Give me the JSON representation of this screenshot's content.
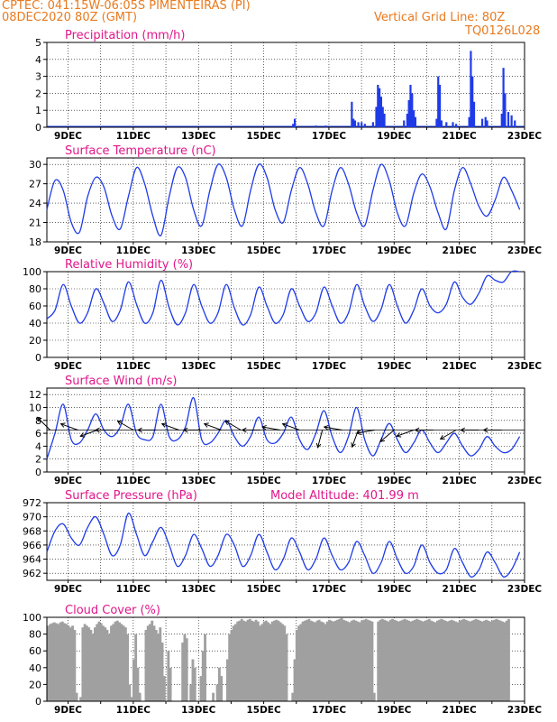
{
  "header": {
    "left_line1": "CPTEC:   041:15W-06:05S   PIMENTEIRAS (PI)",
    "left_line2": "08DEC2020 80Z (GMT)",
    "right_line1": "Vertical Grid Line: 80Z",
    "right_line2": "TQ0126L028"
  },
  "colors": {
    "header": "#e87a1e",
    "title": "#e0178a",
    "series": "#1f3be8",
    "cloud": "#a0a0a0",
    "wind_arrow": "#000000"
  },
  "x_ticks": [
    "9DEC",
    "11DEC",
    "13DEC",
    "15DEC",
    "17DEC",
    "19DEC",
    "21DEC",
    "23DEC"
  ],
  "chart_data": [
    {
      "type": "bar",
      "name": "precipitation",
      "title": "Precipitation (mm/h)",
      "ylim": [
        0,
        5
      ],
      "yticks": [
        0,
        1,
        2,
        3,
        4,
        5
      ],
      "x_days": [
        8.35,
        23.0
      ],
      "values_per_hour": "hourly series, see spikes",
      "spikes": [
        [
          15.9,
          0.2
        ],
        [
          15.95,
          0.5
        ],
        [
          16.6,
          0.1
        ],
        [
          16.9,
          0.1
        ],
        [
          17.7,
          1.5
        ],
        [
          17.75,
          0.5
        ],
        [
          17.8,
          0.4
        ],
        [
          17.9,
          0.3
        ],
        [
          18.0,
          0.3
        ],
        [
          18.1,
          0.2
        ],
        [
          18.35,
          0.3
        ],
        [
          18.45,
          1.2
        ],
        [
          18.5,
          2.5
        ],
        [
          18.55,
          2.3
        ],
        [
          18.6,
          1.8
        ],
        [
          18.65,
          1.2
        ],
        [
          18.7,
          0.8
        ],
        [
          19.3,
          0.4
        ],
        [
          19.4,
          0.8
        ],
        [
          19.45,
          1.6
        ],
        [
          19.5,
          2.5
        ],
        [
          19.55,
          2.0
        ],
        [
          19.6,
          1.0
        ],
        [
          19.65,
          0.6
        ],
        [
          20.3,
          0.5
        ],
        [
          20.35,
          3.0
        ],
        [
          20.4,
          2.5
        ],
        [
          20.45,
          0.4
        ],
        [
          20.6,
          0.3
        ],
        [
          20.8,
          0.3
        ],
        [
          20.9,
          0.2
        ],
        [
          21.3,
          0.6
        ],
        [
          21.35,
          4.5
        ],
        [
          21.4,
          3.0
        ],
        [
          21.45,
          1.5
        ],
        [
          21.7,
          0.5
        ],
        [
          21.8,
          0.6
        ],
        [
          21.85,
          0.4
        ],
        [
          22.3,
          0.8
        ],
        [
          22.35,
          3.5
        ],
        [
          22.4,
          2.0
        ],
        [
          22.5,
          0.9
        ],
        [
          22.6,
          0.7
        ],
        [
          22.7,
          0.4
        ]
      ]
    },
    {
      "type": "line",
      "name": "surface_temperature",
      "title": "Surface Temperature (nC)",
      "ylim": [
        18,
        31
      ],
      "yticks": [
        18,
        21,
        24,
        27,
        30
      ],
      "x_start_day": 8.35,
      "step_days": 0.25,
      "y": [
        23,
        27.5,
        26,
        21,
        19.5,
        25,
        28,
        26.5,
        22,
        20,
        25,
        29.5,
        27,
        22,
        19,
        25,
        29.5,
        28,
        23,
        20.5,
        26,
        30,
        28,
        23,
        20.5,
        26,
        30,
        28,
        23,
        21,
        26,
        29.5,
        27,
        22.5,
        20.5,
        26,
        29.5,
        27,
        22.5,
        20.5,
        26,
        30,
        27.5,
        22.5,
        20.5,
        25.5,
        28.5,
        26.5,
        22.5,
        20,
        26,
        29.5,
        27,
        23.5,
        22,
        24.5,
        28,
        26,
        23,
        21.5,
        24.5,
        26.5,
        24.5,
        22.5,
        21.5,
        23,
        24.5,
        23,
        21.5,
        20.5,
        22.5,
        23.5,
        22,
        20.5,
        20,
        22,
        23.5,
        22,
        20.5,
        20,
        22.5,
        25,
        24.5,
        22.5,
        21.5,
        23,
        26.5,
        25.5,
        23
      ]
    },
    {
      "type": "line",
      "name": "relative_humidity",
      "title": "Relative Humidity (%)",
      "ylim": [
        0,
        100
      ],
      "yticks": [
        0,
        20,
        40,
        60,
        80,
        100
      ],
      "x_start_day": 8.35,
      "step_days": 0.25,
      "y": [
        45,
        55,
        85,
        60,
        40,
        52,
        80,
        63,
        42,
        55,
        88,
        62,
        40,
        52,
        90,
        58,
        38,
        52,
        85,
        60,
        40,
        52,
        85,
        58,
        38,
        50,
        82,
        60,
        40,
        50,
        80,
        60,
        42,
        52,
        82,
        60,
        40,
        52,
        85,
        60,
        42,
        56,
        85,
        60,
        40,
        55,
        80,
        60,
        52,
        62,
        88,
        70,
        62,
        75,
        95,
        90,
        88,
        100,
        100,
        78,
        95,
        100,
        85,
        78,
        100,
        95,
        80,
        82,
        98,
        100,
        70,
        90,
        100,
        98,
        68,
        90,
        100,
        100,
        75,
        92,
        100,
        98,
        72,
        88,
        100,
        96,
        70,
        92,
        100,
        95
      ]
    },
    {
      "type": "line",
      "name": "surface_wind",
      "title": "Surface Wind (m/s)",
      "ylim": [
        0,
        13
      ],
      "yticks": [
        0,
        2,
        4,
        6,
        8,
        10,
        12
      ],
      "x_start_day": 8.35,
      "step_days": 0.25,
      "y": [
        2,
        6,
        10.5,
        5,
        4.5,
        6.5,
        9,
        6.5,
        5.5,
        7,
        10.5,
        6,
        5,
        5.5,
        10.5,
        5.5,
        5,
        7,
        11.5,
        5,
        4.5,
        6,
        8,
        5.5,
        4,
        5.5,
        8.5,
        5,
        4.5,
        6,
        8.5,
        5,
        3.5,
        6,
        9.5,
        5.5,
        3,
        5.5,
        10,
        5,
        2.5,
        5,
        7.5,
        5,
        3,
        4.5,
        6.5,
        4.5,
        3,
        4.5,
        6,
        4,
        2.5,
        3.5,
        5.5,
        4,
        3,
        3.5,
        5.5,
        3,
        2,
        3.5,
        5.5,
        3.5,
        2.5,
        4,
        5,
        4,
        3,
        4.5,
        6.5,
        4.5,
        3.5,
        4,
        5.5,
        4,
        4,
        4.5,
        6.5,
        4.5,
        4,
        5,
        7,
        5,
        4.5,
        5.5
      ],
      "arrows": [
        [
          8.45,
          315
        ],
        [
          9.3,
          290
        ],
        [
          9.9,
          250
        ],
        [
          10.4,
          270
        ],
        [
          11.0,
          300
        ],
        [
          11.7,
          270
        ],
        [
          12.4,
          290
        ],
        [
          13.1,
          270
        ],
        [
          13.7,
          290
        ],
        [
          14.3,
          300
        ],
        [
          14.9,
          270
        ],
        [
          15.5,
          280
        ],
        [
          16.1,
          290
        ],
        [
          16.8,
          195
        ],
        [
          17.4,
          280
        ],
        [
          17.9,
          200
        ],
        [
          18.4,
          260
        ],
        [
          19.0,
          230
        ],
        [
          19.6,
          250
        ],
        [
          20.2,
          270
        ],
        [
          20.9,
          240
        ],
        [
          21.6,
          270
        ],
        [
          22.3,
          270
        ]
      ]
    },
    {
      "type": "line",
      "name": "surface_pressure",
      "title": "Surface Pressure (hPa)",
      "annotation": "Model Altitude: 401.99 m",
      "ylim": [
        961,
        972
      ],
      "yticks": [
        962,
        964,
        966,
        968,
        970,
        972
      ],
      "x_start_day": 8.35,
      "step_days": 0.25,
      "y": [
        965,
        968,
        969,
        967,
        966,
        968.5,
        970,
        967.5,
        964.5,
        966,
        970.5,
        967.5,
        964.5,
        966.5,
        968.5,
        966,
        963,
        964.5,
        967.5,
        965.5,
        963,
        964.5,
        967.5,
        966,
        963,
        964.5,
        967.5,
        965,
        962.5,
        964,
        967,
        965,
        962.5,
        964,
        967,
        964.5,
        962.5,
        963.5,
        966.5,
        964.5,
        962,
        963.5,
        966.5,
        964,
        962,
        963,
        966,
        963.5,
        962,
        962.5,
        965.5,
        963.5,
        961.5,
        962.5,
        965,
        963.5,
        961.5,
        962.5,
        965,
        963,
        961.5,
        962,
        965,
        963,
        961.5,
        962,
        964.5,
        963,
        961.5,
        962,
        965,
        963,
        961.5,
        962,
        964.5,
        962.5,
        961,
        962,
        964.5,
        962.5,
        961,
        962,
        964.5,
        962.5,
        961,
        962.5,
        964.5,
        962.5,
        961,
        962.5
      ]
    },
    {
      "type": "area",
      "name": "cloud_cover",
      "title": "Cloud Cover (%)",
      "ylim": [
        0,
        100
      ],
      "yticks": [
        0,
        20,
        40,
        60,
        80,
        100
      ],
      "x_start_day": 8.35,
      "step_days": 0.0625,
      "y": [
        90,
        92,
        93,
        94,
        93,
        92,
        94,
        95,
        93,
        92,
        90,
        88,
        90,
        85,
        10,
        0,
        5,
        88,
        92,
        90,
        88,
        85,
        80,
        88,
        92,
        95,
        93,
        90,
        88,
        85,
        80,
        90,
        92,
        95,
        96,
        94,
        92,
        90,
        88,
        80,
        20,
        5,
        50,
        80,
        40,
        10,
        0,
        0,
        85,
        90,
        92,
        96,
        90,
        85,
        80,
        88,
        70,
        30,
        0,
        60,
        40,
        0,
        0,
        0,
        0,
        0,
        70,
        80,
        75,
        0,
        20,
        50,
        40,
        0,
        0,
        30,
        60,
        80,
        0,
        0,
        0,
        10,
        0,
        20,
        40,
        30,
        0,
        0,
        50,
        80,
        85,
        90,
        92,
        95,
        96,
        98,
        96,
        95,
        97,
        98,
        96,
        95,
        97,
        95,
        90,
        92,
        95,
        96,
        94,
        92,
        95,
        96,
        97,
        96,
        94,
        92,
        90,
        80,
        0,
        0,
        10,
        50,
        85,
        90,
        92,
        95,
        96,
        97,
        98,
        96,
        95,
        94,
        96,
        97,
        95,
        94,
        92,
        95,
        97,
        96,
        95,
        96,
        97,
        98,
        99,
        97,
        96,
        95,
        94,
        96,
        97,
        96,
        95,
        94,
        96,
        97,
        98,
        97,
        96,
        95,
        10,
        0,
        95,
        97,
        98,
        97,
        96,
        95,
        97,
        98,
        97,
        96,
        95,
        96,
        97,
        98,
        97,
        96,
        95,
        96,
        97,
        98,
        97,
        96,
        95,
        96,
        97,
        98,
        96,
        95,
        94,
        96,
        97,
        98,
        97,
        96,
        95,
        96,
        97,
        96,
        95,
        94,
        96,
        97,
        98,
        97,
        96,
        95,
        96,
        97,
        98,
        97,
        96,
        95,
        96,
        97,
        96,
        95,
        96,
        97,
        98,
        97,
        96,
        95,
        94,
        96,
        98
      ]
    }
  ]
}
